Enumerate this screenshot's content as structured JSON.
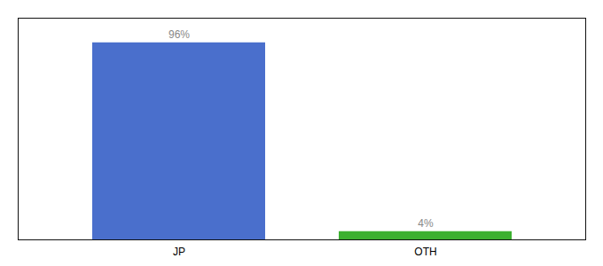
{
  "chart_data": {
    "type": "bar",
    "categories": [
      "JP",
      "OTH"
    ],
    "values": [
      96,
      4
    ],
    "value_labels": [
      "96%",
      "4%"
    ],
    "colors": [
      "#4a6fcc",
      "#3cb030"
    ],
    "ylim": [
      0,
      108
    ],
    "data_labels": true,
    "tick_labels": "x",
    "grid": false
  }
}
